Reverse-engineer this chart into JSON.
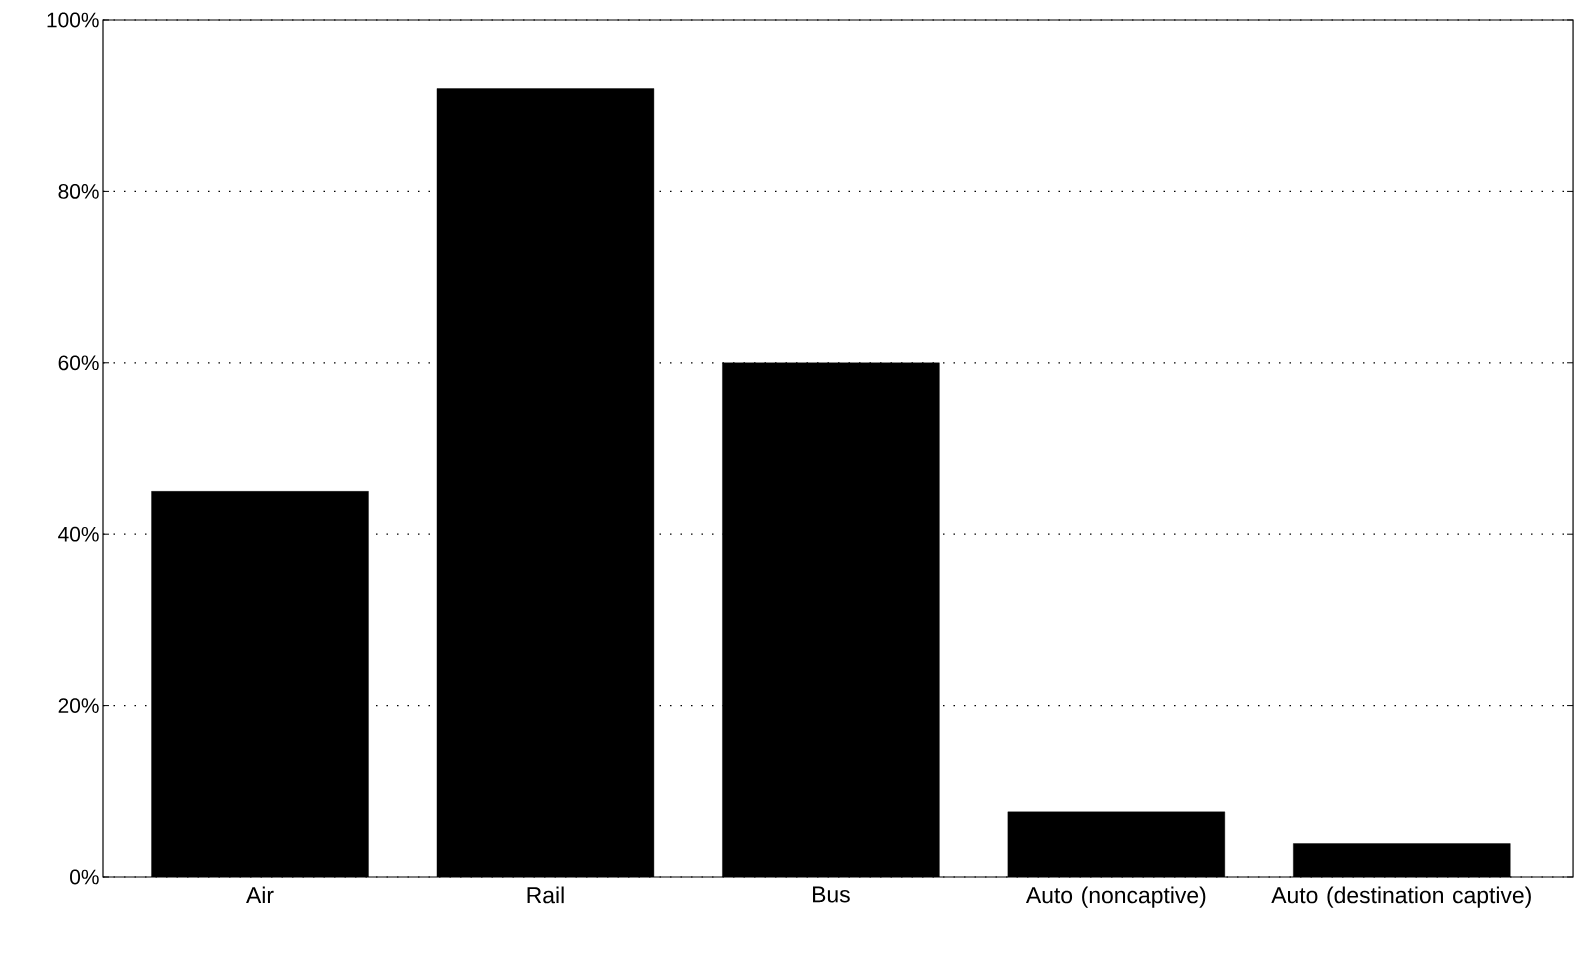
{
  "chart_data": {
    "type": "bar",
    "categories": [
      "Air",
      "Rail",
      "Bus",
      "Auto (noncaptive)",
      "Auto (destination captive)"
    ],
    "values": [
      45,
      92,
      60,
      7.6,
      3.9
    ],
    "color": "#000000",
    "ylim": [
      0,
      100
    ],
    "yticks": [
      {
        "value": 0,
        "label": "0%"
      },
      {
        "value": 20,
        "label": "20%"
      },
      {
        "value": 40,
        "label": "40%"
      },
      {
        "value": 60,
        "label": "60%"
      },
      {
        "value": 80,
        "label": "80%"
      },
      {
        "value": 100,
        "label": "100%"
      }
    ],
    "grid": "y"
  }
}
